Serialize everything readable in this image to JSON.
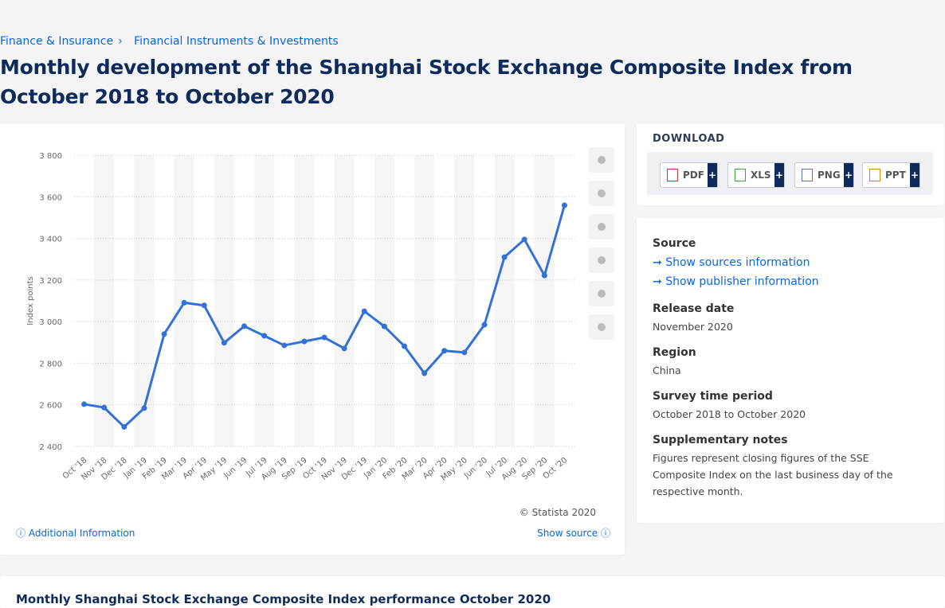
{
  "breadcrumb": [
    "Finance & Insurance",
    "Financial Instruments & Investments"
  ],
  "separator": "›",
  "title": "Monthly development of the Shanghai Stock Exchange Composite Index from October 2018 to October 2020",
  "chart_data": {
    "type": "line",
    "y_label": "Index points",
    "categories": [
      "Oct '18",
      "Nov '18",
      "Dec '18",
      "Jan '19",
      "Feb '19",
      "Mar '19",
      "Apr '19",
      "May '19",
      "Jun '19",
      "Jul '19",
      "Aug '19",
      "Sep '19",
      "Oct '19",
      "Nov '19",
      "Dec '19",
      "Jan '20",
      "Feb '20",
      "Mar '20",
      "Apr '20",
      "May '20",
      "Jun '20",
      "Jul '20",
      "Aug '20",
      "Sep '20",
      "Oct '20"
    ],
    "series": [
      {
        "name": "Index points",
        "color": "#3471d6",
        "values": [
          2603,
          2587,
          2494,
          2584,
          2940,
          3091,
          3078,
          2898,
          2978,
          2932,
          2886,
          2905,
          2924,
          2871,
          3050,
          2977,
          2882,
          2752,
          2860,
          2852,
          2985,
          3310,
          3395,
          3222,
          3559
        ]
      }
    ],
    "ylim": [
      2400,
      3800
    ],
    "yticks": [
      {
        "value": 2400,
        "label": "2 400"
      },
      {
        "value": 2600,
        "label": "2 600"
      },
      {
        "value": 2800,
        "label": "2 800"
      },
      {
        "value": 3000,
        "label": "3 000"
      },
      {
        "value": 3200,
        "label": "3 200"
      },
      {
        "value": 3400,
        "label": "3 400"
      },
      {
        "value": 3600,
        "label": "3 600"
      },
      {
        "value": 3800,
        "label": "3 800"
      }
    ],
    "grid": true
  },
  "copyright": "© Statista 2020",
  "additional": "Additional Information",
  "show_source": "Show source",
  "download": {
    "heading": "DOWNLOAD",
    "buttons": [
      "PDF",
      "XLS",
      "PNG",
      "PPT"
    ],
    "plus": "+"
  },
  "info": {
    "source_heading": "Source",
    "show_sources": "Show sources information",
    "show_publisher": "Show publisher information",
    "sections": [
      {
        "heading": "Release date",
        "text": "November 2020"
      },
      {
        "heading": "Region",
        "text": "China"
      },
      {
        "heading": "Survey time period",
        "text": "October 2018 to October 2020"
      },
      {
        "heading": "Supplementary notes",
        "text": "Figures represent closing figures of the SSE Composite Index on the last business day of the respective month."
      }
    ]
  },
  "bottom_heading": "Monthly Shanghai Stock Exchange Composite Index performance October 2020"
}
